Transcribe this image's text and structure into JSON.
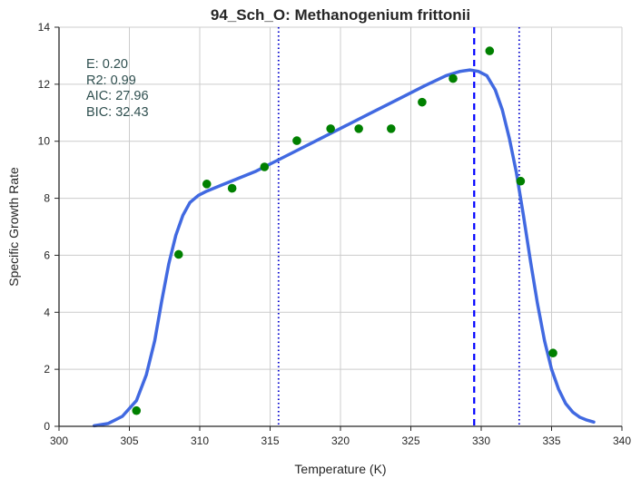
{
  "chart_data": {
    "type": "scatter",
    "title": "94_Sch_O: Methanogenium frittonii",
    "xlabel": "Temperature (K)",
    "ylabel": "Specific Growth Rate",
    "xlim": [
      300,
      340
    ],
    "ylim": [
      0,
      14
    ],
    "xticks": [
      "300",
      "305",
      "310",
      "315",
      "320",
      "325",
      "330",
      "335",
      "340"
    ],
    "yticks": [
      "0",
      "2",
      "4",
      "6",
      "8",
      "10",
      "12",
      "14"
    ],
    "grid": true,
    "annotations": [
      "E:  0.20",
      "R2:  0.99",
      "AIC: 27.96",
      "BIC: 32.43"
    ],
    "series": [
      {
        "kind": "points",
        "color": "#008000",
        "x": [
          305.5,
          308.5,
          310.5,
          312.3,
          314.6,
          316.9,
          319.3,
          321.3,
          323.6,
          325.8,
          328.0,
          330.6,
          332.8,
          335.1
        ],
        "y": [
          0.55,
          6.03,
          8.5,
          8.35,
          9.1,
          10.02,
          10.44,
          10.44,
          10.44,
          11.37,
          12.2,
          13.17,
          8.6,
          2.57
        ]
      },
      {
        "kind": "line",
        "color": "#4169e1",
        "x": [
          302.5,
          303.5,
          304.5,
          305.5,
          306.2,
          306.8,
          307.3,
          307.8,
          308.3,
          308.8,
          309.3,
          309.9,
          310.5,
          311.5,
          312.5,
          314.0,
          316.0,
          318.0,
          320.0,
          322.0,
          324.0,
          326.0,
          327.5,
          328.5,
          329.2,
          329.8,
          330.4,
          331.0,
          331.5,
          332.0,
          332.5,
          333.0,
          333.5,
          334.0,
          334.5,
          335.0,
          335.5,
          336.0,
          336.5,
          337.0,
          337.5,
          338.0
        ],
        "y": [
          0.02,
          0.1,
          0.35,
          0.9,
          1.8,
          3.0,
          4.4,
          5.7,
          6.7,
          7.4,
          7.85,
          8.1,
          8.25,
          8.45,
          8.65,
          8.95,
          9.45,
          9.95,
          10.45,
          10.95,
          11.45,
          11.95,
          12.3,
          12.45,
          12.5,
          12.45,
          12.3,
          11.8,
          11.1,
          10.1,
          8.9,
          7.4,
          5.8,
          4.3,
          3.0,
          2.0,
          1.3,
          0.8,
          0.5,
          0.32,
          0.22,
          0.15
        ]
      }
    ],
    "vlines": [
      {
        "x": 315.6,
        "style": "dotted",
        "color": "#0000cd"
      },
      {
        "x": 329.5,
        "style": "dashed",
        "color": "#0000ff"
      },
      {
        "x": 332.7,
        "style": "dotted",
        "color": "#0000cd"
      }
    ]
  }
}
